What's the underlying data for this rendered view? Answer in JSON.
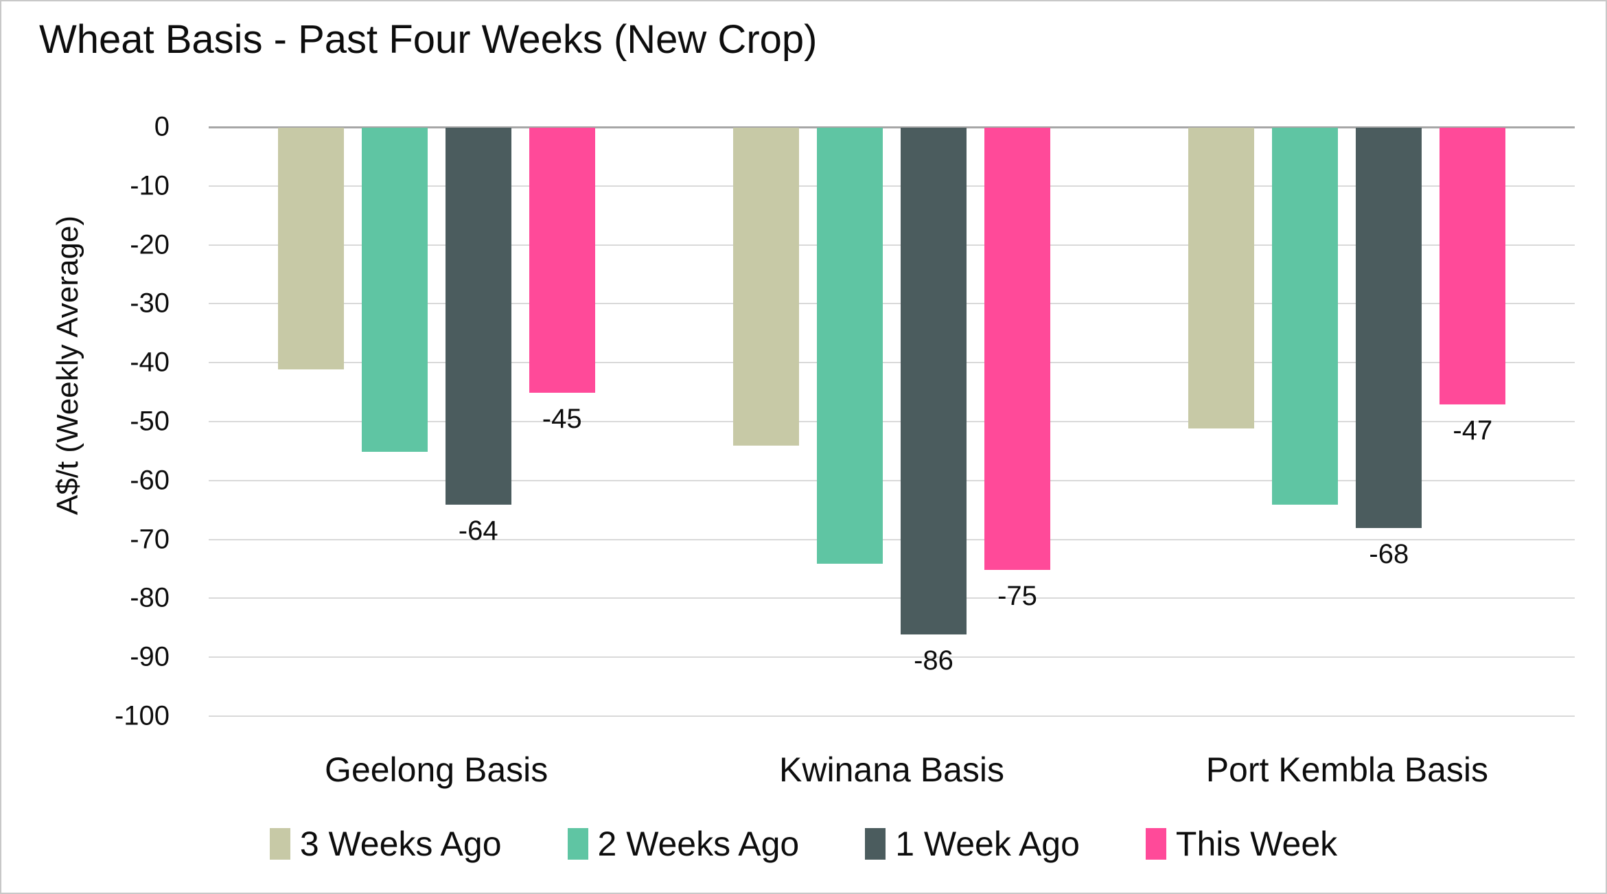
{
  "chart_data": {
    "type": "bar",
    "title": "Wheat Basis - Past Four Weeks (New Crop)",
    "xlabel": "",
    "ylabel": "A$/t (Weekly Average)",
    "ylim": [
      -100,
      0
    ],
    "yticks": [
      0,
      -10,
      -20,
      -30,
      -40,
      -50,
      -60,
      -70,
      -80,
      -90,
      -100
    ],
    "grid": true,
    "legend_position": "bottom",
    "categories": [
      "Geelong Basis",
      "Kwinana Basis",
      "Port Kembla Basis"
    ],
    "series": [
      {
        "name": "3 Weeks Ago",
        "color": "#c7c9a6",
        "labeled": false,
        "values": [
          -41,
          -54,
          -51
        ]
      },
      {
        "name": "2 Weeks Ago",
        "color": "#5fc5a3",
        "labeled": false,
        "values": [
          -55,
          -74,
          -64
        ]
      },
      {
        "name": "1 Week Ago",
        "color": "#4b5c5e",
        "labeled": true,
        "values": [
          -64,
          -86,
          -68
        ]
      },
      {
        "name": "This Week",
        "color": "#ff4a99",
        "labeled": true,
        "values": [
          -45,
          -75,
          -47
        ]
      }
    ],
    "colors": {
      "gridline": "#d9d9d9",
      "zero_line": "#a6a6a6",
      "text": "#0d0d0d",
      "background": "#ffffff",
      "border": "#c8c8c8"
    }
  }
}
